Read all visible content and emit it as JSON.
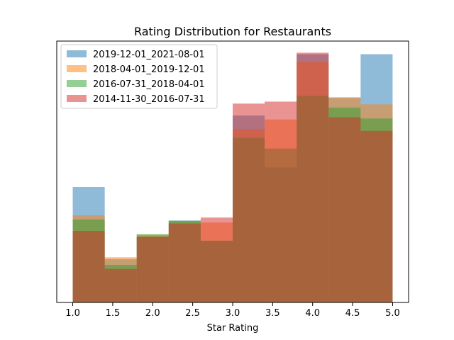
{
  "chart_data": {
    "type": "bar",
    "title": "Rating Distribution for Restaurants",
    "xlabel": "Star Rating",
    "ylabel": "",
    "xlim": [
      0.8,
      5.2
    ],
    "ylim": [
      0,
      100
    ],
    "xticks": [
      "1.0",
      "1.5",
      "2.0",
      "2.5",
      "3.0",
      "3.5",
      "4.0",
      "4.5",
      "5.0"
    ],
    "legend_position": "top-left",
    "bin_edges": [
      1.0,
      1.4,
      1.8,
      2.2,
      2.6,
      3.0,
      3.4,
      3.8,
      4.2,
      4.6,
      5.0
    ],
    "series": [
      {
        "name": "2019-12-01_2021-08-01",
        "color": "#1f77b4",
        "values": [
          46.5,
          17.5,
          26.5,
          33,
          24.8,
          75.3,
          54.4,
          100,
          82.4,
          100
        ]
      },
      {
        "name": "2018-04-01_2019-12-01",
        "color": "#ff7f0e",
        "values": [
          35.1,
          18.2,
          27.3,
          32.7,
          32.2,
          69.9,
          73.7,
          96.8,
          82.7,
          79.8
        ]
      },
      {
        "name": "2016-07-31_2018-04-01",
        "color": "#2ca02c",
        "values": [
          33.4,
          15.1,
          27.5,
          32.9,
          24.9,
          66.3,
          62.0,
          83.2,
          78.5,
          74.1
        ]
      },
      {
        "name": "2014-11-30_2016-07-31",
        "color": "#d62728",
        "values": [
          28.8,
          13.5,
          26.5,
          31.8,
          34.2,
          80.1,
          80.9,
          100.6,
          74.6,
          69.1
        ]
      }
    ]
  }
}
